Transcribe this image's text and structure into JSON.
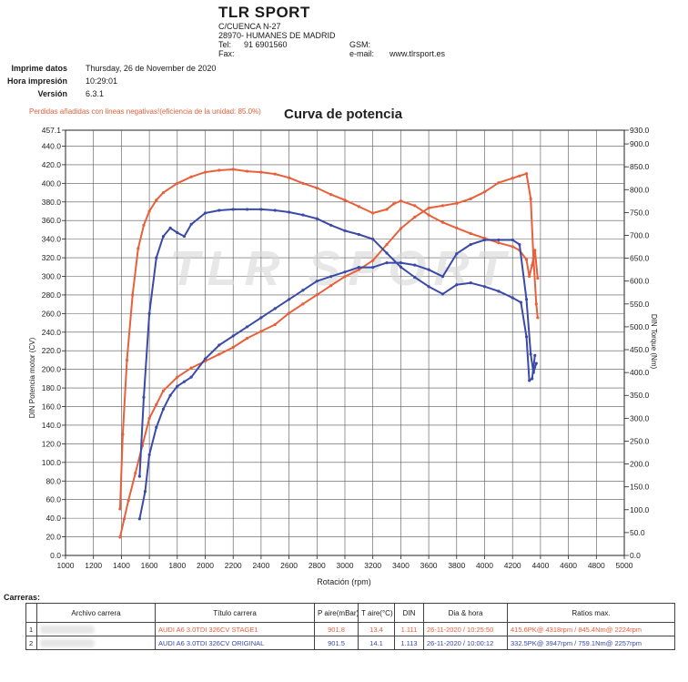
{
  "company": {
    "name": "TLR SPORT",
    "address1": "C/CUENCA N-27",
    "address2": "28970- HUMANES DE MADRID",
    "tel_label": "Tel:",
    "tel_value": "91 6901560",
    "fax_label": "Fax:",
    "gsm_label": "GSM:",
    "email_label": "e-mail:",
    "website": "www.tlrsport.es"
  },
  "meta": [
    {
      "label": "Imprime datos",
      "value": "Thursday, 26 de November de 2020"
    },
    {
      "label": "Hora impresión",
      "value": "10:29:01"
    },
    {
      "label": "Versión",
      "value": "6.3.1"
    }
  ],
  "loss_note": "Perdidas añadidas con lineas negativas!(eficiencia de la unidad: 85.0%)",
  "watermark": "TLR SPORT",
  "colors": {
    "stage1": "#e8603a",
    "original": "#3a4aa8",
    "grid": "#555555"
  },
  "chart_data": {
    "type": "line",
    "title": "Curva de potencia",
    "xlabel": "Rotación (rpm)",
    "ylabel_left": "DIN Potencia motor (CV)",
    "ylabel_right": "DIN Torque (Nm)",
    "xlim": [
      1000,
      5000
    ],
    "xticks": [
      1000,
      1200,
      1400,
      1600,
      1800,
      2000,
      2200,
      2400,
      2600,
      2800,
      3000,
      3200,
      3400,
      3600,
      3800,
      4000,
      4200,
      4400,
      4600,
      4800,
      5000
    ],
    "ylim_left": [
      0,
      457.1
    ],
    "yticks_left": [
      0,
      20,
      40,
      60,
      80,
      100,
      120,
      140,
      160,
      180,
      200,
      220,
      240,
      260,
      280,
      300,
      320,
      340,
      360,
      380,
      400,
      420,
      440,
      457.1
    ],
    "ylim_right": [
      0,
      930
    ],
    "yticks_right": [
      0,
      50,
      100,
      150,
      200,
      250,
      300,
      350,
      400,
      450,
      500,
      550,
      600,
      650,
      700,
      750,
      800,
      850,
      900,
      930
    ],
    "series": [
      {
        "name": "AUDI A6 3.0TDI 326CV  STAGE1",
        "kind": "power",
        "axis": "left",
        "color": "#e8603a",
        "x": [
          1390,
          1410,
          1440,
          1480,
          1520,
          1560,
          1600,
          1650,
          1700,
          1800,
          1900,
          2000,
          2100,
          2200,
          2300,
          2400,
          2500,
          2600,
          2700,
          2800,
          2900,
          3000,
          3100,
          3200,
          3300,
          3350,
          3400,
          3500,
          3600,
          3700,
          3800,
          3900,
          4000,
          4100,
          4200,
          4250,
          4300,
          4320,
          4340,
          4360,
          4380
        ],
        "y": [
          50,
          130,
          210,
          280,
          330,
          355,
          370,
          382,
          390,
          400,
          407,
          412,
          414,
          415,
          413,
          412,
          410,
          406,
          400,
          395,
          388,
          382,
          375,
          368,
          372,
          378,
          381,
          376,
          366,
          358,
          352,
          346,
          341,
          336,
          332,
          328,
          318,
          300,
          312,
          328,
          298
        ]
      },
      {
        "name": "AUDI A6 3.0TDI 326CV  STAGE1",
        "kind": "torque",
        "axis": "right",
        "color": "#e8603a",
        "x": [
          1390,
          1420,
          1450,
          1500,
          1550,
          1600,
          1650,
          1700,
          1800,
          1900,
          2000,
          2100,
          2200,
          2300,
          2400,
          2500,
          2600,
          2700,
          2800,
          2900,
          3000,
          3100,
          3200,
          3300,
          3400,
          3500,
          3600,
          3700,
          3800,
          3900,
          4000,
          4100,
          4200,
          4250,
          4300,
          4330,
          4350,
          4370,
          4380
        ],
        "y": [
          40,
          80,
          120,
          180,
          240,
          300,
          330,
          360,
          390,
          410,
          425,
          440,
          455,
          475,
          490,
          505,
          530,
          550,
          570,
          590,
          610,
          625,
          645,
          680,
          715,
          740,
          760,
          765,
          770,
          780,
          795,
          815,
          825,
          830,
          835,
          780,
          650,
          550,
          520
        ]
      },
      {
        "name": "AUDI A6 3.0TDI 326CV  ORIGINAL",
        "kind": "power",
        "axis": "left",
        "color": "#3a4aa8",
        "x": [
          1530,
          1560,
          1600,
          1650,
          1700,
          1750,
          1800,
          1850,
          1900,
          2000,
          2100,
          2200,
          2300,
          2400,
          2500,
          2600,
          2700,
          2800,
          2900,
          3000,
          3100,
          3200,
          3300,
          3400,
          3500,
          3600,
          3700,
          3800,
          3900,
          4000,
          4100,
          4200,
          4260,
          4300,
          4320,
          4340,
          4360
        ],
        "y": [
          85,
          170,
          260,
          320,
          343,
          352,
          347,
          343,
          356,
          368,
          371,
          372,
          372,
          372,
          371,
          369,
          366,
          362,
          355,
          349,
          345,
          340,
          325,
          310,
          299,
          289,
          281,
          291,
          293,
          289,
          284,
          277,
          272,
          235,
          188,
          190,
          215
        ]
      },
      {
        "name": "AUDI A6 3.0TDI 326CV  ORIGINAL",
        "kind": "torque",
        "axis": "right",
        "color": "#3a4aa8",
        "x": [
          1530,
          1570,
          1600,
          1650,
          1700,
          1750,
          1800,
          1850,
          1900,
          2000,
          2100,
          2200,
          2300,
          2400,
          2500,
          2600,
          2700,
          2800,
          2900,
          3000,
          3100,
          3200,
          3300,
          3400,
          3500,
          3600,
          3700,
          3800,
          3900,
          4000,
          4100,
          4200,
          4250,
          4300,
          4330,
          4350,
          4370
        ],
        "y": [
          80,
          140,
          220,
          280,
          320,
          350,
          370,
          380,
          390,
          430,
          460,
          480,
          500,
          520,
          540,
          560,
          580,
          600,
          610,
          620,
          630,
          630,
          640,
          640,
          635,
          625,
          610,
          660,
          680,
          690,
          690,
          690,
          680,
          560,
          440,
          400,
          420
        ]
      }
    ]
  },
  "runs": {
    "title": "Carreras:",
    "headers": [
      "Archivo carrera",
      "Título carrera",
      "P aire(mBar)",
      "T aire(°C)",
      "DIN",
      "Dia & hora",
      "Ratios max."
    ],
    "rows": [
      {
        "num": "1",
        "titulo": "AUDI A6 3.0TDI 326CV  STAGE1",
        "p_aire": "901.8",
        "t_aire": "13.4",
        "din": "1.111",
        "fecha": "26-11-2020 / 10:25:50",
        "ratios": "415.6PK@ 4318rpm / 845.4Nm@ 2224rpm",
        "color": "#e8603a"
      },
      {
        "num": "2",
        "titulo": "AUDI A6 3.0TDI 326CV  ORIGINAL",
        "p_aire": "901.5",
        "t_aire": "14.1",
        "din": "1.113",
        "fecha": "26-11-2020 / 10:00:12",
        "ratios": "332.5PK@ 3947rpm / 759.1Nm@ 2257rpm",
        "color": "#3a4aa8"
      }
    ]
  }
}
